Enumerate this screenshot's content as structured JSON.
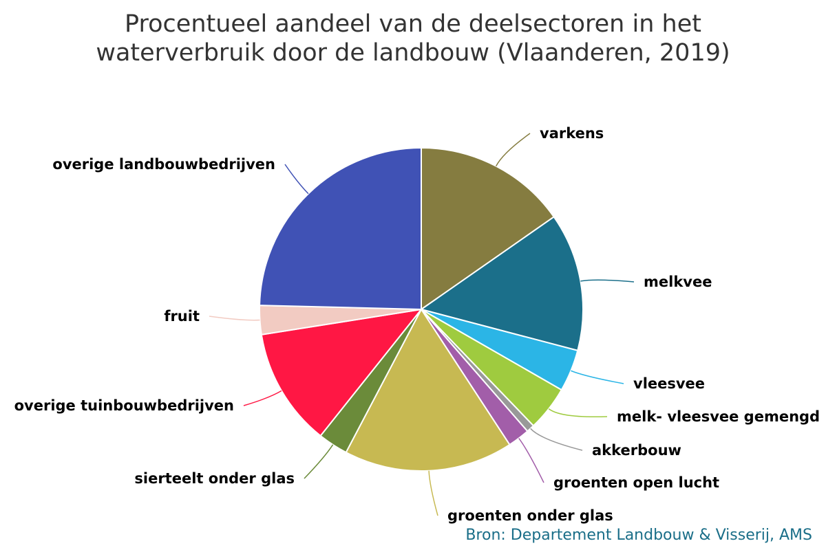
{
  "chart_data": {
    "type": "pie",
    "title": [
      "Procentueel aandeel van de deelsectoren in het",
      "waterverbruik door de landbouw (Vlaanderen, 2019)"
    ],
    "slices": [
      {
        "label": "varkens",
        "value": 15.3,
        "color": "#857c40"
      },
      {
        "label": "melkvee",
        "value": 13.8,
        "color": "#1b6f8a"
      },
      {
        "label": "vleesvee",
        "value": 4.2,
        "color": "#2bb5e6"
      },
      {
        "label": "melk- vleesvee gemengd",
        "value": 4.5,
        "color": "#9fcb3f"
      },
      {
        "label": "akkerbouw",
        "value": 0.8,
        "color": "#999999"
      },
      {
        "label": "groenten open lucht",
        "value": 2.2,
        "color": "#a25ea9"
      },
      {
        "label": "groenten onder glas",
        "value": 16.9,
        "color": "#c7b952"
      },
      {
        "label": "sierteelt onder glas",
        "value": 3.0,
        "color": "#6b8b3a"
      },
      {
        "label": "overige tuinbouwbedrijven",
        "value": 11.8,
        "color": "#ff1744"
      },
      {
        "label": "fruit",
        "value": 2.9,
        "color": "#f2cbc2"
      },
      {
        "label": "overige landbouwbedrijven",
        "value": 24.6,
        "color": "#4052b5"
      }
    ]
  },
  "credits": "Bron: Departement Landbouw & Visserij, AMS"
}
